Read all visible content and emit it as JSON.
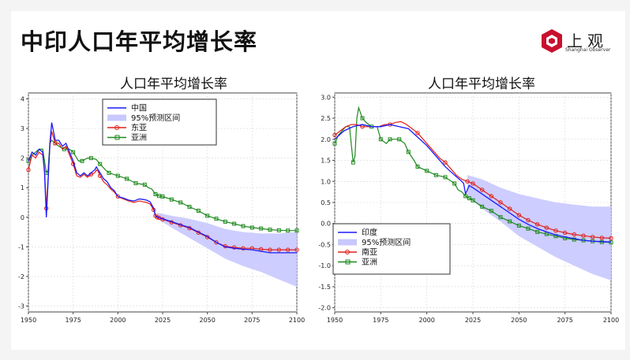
{
  "slide": {
    "title": "中印人口年平均增长率",
    "logo_text": "上观",
    "logo_subtext": "Shanghai Observer",
    "logo_color": "#c8102e"
  },
  "chart_data": [
    {
      "type": "line",
      "title": "人口年平均增长率",
      "xlim": [
        1950,
        2100
      ],
      "ylim": [
        -3.2,
        4.2
      ],
      "xticks": [
        1950,
        1975,
        2000,
        2025,
        2050,
        2075,
        2100
      ],
      "yticks": [
        -3,
        -2,
        -1,
        0,
        1,
        2,
        3,
        4
      ],
      "grid": true,
      "legend_position": "top-center",
      "legend": [
        "中国",
        "95%预测区间",
        "东亚",
        "亚洲"
      ],
      "series": [
        {
          "name": "中国",
          "color": "#1a1aff",
          "marker": "none",
          "x": [
            1950,
            1952,
            1954,
            1956,
            1958,
            1959,
            1960,
            1961,
            1962,
            1963,
            1965,
            1967,
            1969,
            1971,
            1973,
            1975,
            1977,
            1979,
            1981,
            1983,
            1985,
            1987,
            1988,
            1989,
            1990,
            1992,
            1994,
            1996,
            1998,
            2000,
            2003,
            2006,
            2009,
            2012,
            2014,
            2016,
            2018,
            2020,
            2021,
            2022,
            2023,
            2025,
            2030,
            2035,
            2040,
            2045,
            2050,
            2055,
            2060,
            2065,
            2070,
            2075,
            2080,
            2085,
            2090,
            2095,
            2100
          ],
          "y": [
            1.9,
            2.2,
            2.1,
            2.3,
            2.2,
            1.5,
            0.0,
            1.2,
            2.5,
            3.2,
            2.6,
            2.6,
            2.4,
            2.5,
            2.2,
            1.9,
            1.5,
            1.4,
            1.5,
            1.4,
            1.5,
            1.6,
            1.7,
            1.6,
            1.5,
            1.3,
            1.2,
            1.0,
            0.9,
            0.7,
            0.65,
            0.58,
            0.55,
            0.62,
            0.6,
            0.58,
            0.52,
            0.3,
            0.05,
            0.0,
            -0.01,
            -0.05,
            -0.15,
            -0.25,
            -0.35,
            -0.5,
            -0.65,
            -0.85,
            -1.0,
            -1.05,
            -1.08,
            -1.1,
            -1.15,
            -1.2,
            -1.2,
            -1.2,
            -1.2
          ]
        },
        {
          "name": "东亚",
          "color": "#e0201a",
          "marker": "circle",
          "x": [
            1950,
            1952,
            1954,
            1956,
            1958,
            1959,
            1960,
            1961,
            1962,
            1963,
            1965,
            1967,
            1969,
            1971,
            1973,
            1975,
            1977,
            1979,
            1981,
            1983,
            1985,
            1987,
            1988,
            1989,
            1990,
            1992,
            1994,
            1996,
            1998,
            2000,
            2003,
            2006,
            2009,
            2012,
            2014,
            2016,
            2018,
            2020,
            2021,
            2022,
            2023,
            2025,
            2030,
            2035,
            2040,
            2045,
            2050,
            2055,
            2060,
            2065,
            2070,
            2075,
            2080,
            2085,
            2090,
            2095,
            2100
          ],
          "y": [
            1.6,
            2.1,
            2.0,
            2.2,
            2.1,
            1.6,
            0.3,
            1.3,
            2.4,
            2.9,
            2.5,
            2.5,
            2.3,
            2.4,
            2.1,
            1.8,
            1.4,
            1.35,
            1.45,
            1.35,
            1.45,
            1.5,
            1.6,
            1.55,
            1.4,
            1.2,
            1.1,
            0.95,
            0.85,
            0.7,
            0.62,
            0.55,
            0.5,
            0.55,
            0.52,
            0.5,
            0.45,
            0.25,
            0.05,
            0.0,
            -0.02,
            -0.07,
            -0.17,
            -0.27,
            -0.37,
            -0.52,
            -0.67,
            -0.85,
            -0.98,
            -1.02,
            -1.05,
            -1.05,
            -1.08,
            -1.1,
            -1.1,
            -1.1,
            -1.1
          ]
        },
        {
          "name": "亚洲",
          "color": "#1e8a1e",
          "marker": "square",
          "x": [
            1950,
            1952,
            1954,
            1956,
            1958,
            1960,
            1961,
            1962,
            1963,
            1965,
            1967,
            1970,
            1973,
            1975,
            1978,
            1980,
            1983,
            1985,
            1988,
            1990,
            1993,
            1995,
            2000,
            2005,
            2010,
            2015,
            2017,
            2019,
            2021,
            2023,
            2025,
            2030,
            2035,
            2040,
            2045,
            2050,
            2055,
            2060,
            2065,
            2070,
            2075,
            2080,
            2085,
            2090,
            2095,
            2100
          ],
          "y": [
            1.9,
            2.1,
            2.2,
            2.3,
            2.3,
            1.5,
            1.6,
            2.5,
            2.6,
            2.5,
            2.4,
            2.3,
            2.3,
            2.2,
            1.9,
            1.9,
            2.0,
            2.0,
            1.95,
            1.8,
            1.6,
            1.5,
            1.4,
            1.3,
            1.15,
            1.1,
            1.0,
            0.95,
            0.78,
            0.72,
            0.7,
            0.6,
            0.5,
            0.35,
            0.22,
            0.05,
            -0.05,
            -0.15,
            -0.22,
            -0.3,
            -0.35,
            -0.38,
            -0.42,
            -0.44,
            -0.45,
            -0.45
          ]
        }
      ],
      "band": {
        "name": "95%预测区间",
        "color": "#c8c8ff",
        "x": [
          2022,
          2030,
          2040,
          2050,
          2060,
          2070,
          2080,
          2090,
          2100
        ],
        "lower": [
          -0.05,
          -0.35,
          -0.7,
          -1.05,
          -1.4,
          -1.65,
          -1.85,
          -2.1,
          -2.35
        ],
        "upper": [
          0.15,
          0.05,
          -0.05,
          -0.2,
          -0.4,
          -0.5,
          -0.55,
          -0.55,
          -0.5
        ]
      }
    },
    {
      "type": "line",
      "title": "人口年平均增长率",
      "xlim": [
        1950,
        2100
      ],
      "ylim": [
        -2.1,
        3.1
      ],
      "xticks": [
        1950,
        1975,
        2000,
        2025,
        2050,
        2075,
        2100
      ],
      "yticks": [
        -2.0,
        -1.5,
        -1.0,
        -0.5,
        0.0,
        0.5,
        1.0,
        1.5,
        2.0,
        2.5,
        3.0
      ],
      "grid": true,
      "legend_position": "bottom-left",
      "legend": [
        "印度",
        "95%预测区间",
        "南亚",
        "亚洲"
      ],
      "series": [
        {
          "name": "印度",
          "color": "#1a1aff",
          "marker": "none",
          "x": [
            1950,
            1955,
            1960,
            1965,
            1970,
            1975,
            1980,
            1985,
            1990,
            1995,
            2000,
            2005,
            2010,
            2015,
            2019,
            2020,
            2021,
            2022,
            2023,
            2025,
            2030,
            2035,
            2040,
            2045,
            2050,
            2055,
            2060,
            2065,
            2070,
            2075,
            2080,
            2085,
            2090,
            2095,
            2100
          ],
          "y": [
            2.0,
            2.2,
            2.3,
            2.35,
            2.3,
            2.3,
            2.35,
            2.3,
            2.25,
            2.05,
            1.85,
            1.6,
            1.35,
            1.15,
            1.0,
            0.95,
            0.7,
            0.8,
            0.9,
            0.85,
            0.7,
            0.55,
            0.4,
            0.25,
            0.1,
            -0.02,
            -0.12,
            -0.2,
            -0.27,
            -0.32,
            -0.36,
            -0.4,
            -0.42,
            -0.43,
            -0.44
          ]
        },
        {
          "name": "南亚",
          "color": "#e0201a",
          "marker": "circle",
          "x": [
            1950,
            1953,
            1956,
            1959,
            1962,
            1965,
            1968,
            1971,
            1974,
            1977,
            1980,
            1983,
            1986,
            1989,
            1992,
            1995,
            1998,
            2001,
            2004,
            2007,
            2010,
            2013,
            2016,
            2019,
            2022,
            2025,
            2030,
            2035,
            2040,
            2045,
            2050,
            2055,
            2060,
            2065,
            2070,
            2075,
            2080,
            2085,
            2090,
            2095,
            2100
          ],
          "y": [
            2.1,
            2.2,
            2.3,
            2.35,
            2.35,
            2.3,
            2.3,
            2.3,
            2.3,
            2.35,
            2.35,
            2.4,
            2.42,
            2.35,
            2.25,
            2.15,
            2.0,
            1.85,
            1.7,
            1.55,
            1.45,
            1.3,
            1.15,
            1.05,
            1.0,
            0.95,
            0.8,
            0.65,
            0.5,
            0.35,
            0.2,
            0.08,
            -0.02,
            -0.1,
            -0.17,
            -0.22,
            -0.26,
            -0.29,
            -0.32,
            -0.34,
            -0.35
          ]
        },
        {
          "name": "亚洲",
          "color": "#1e8a1e",
          "marker": "square",
          "x": [
            1950,
            1952,
            1954,
            1956,
            1958,
            1960,
            1961,
            1962,
            1963,
            1965,
            1967,
            1970,
            1973,
            1975,
            1978,
            1980,
            1983,
            1985,
            1988,
            1990,
            1993,
            1995,
            2000,
            2005,
            2010,
            2015,
            2017,
            2019,
            2021,
            2023,
            2025,
            2030,
            2035,
            2040,
            2045,
            2050,
            2055,
            2060,
            2065,
            2070,
            2075,
            2080,
            2085,
            2090,
            2095,
            2100
          ],
          "y": [
            1.9,
            2.1,
            2.2,
            2.3,
            2.3,
            1.45,
            1.6,
            2.5,
            2.75,
            2.5,
            2.4,
            2.3,
            2.3,
            2.0,
            1.9,
            2.0,
            2.0,
            2.0,
            1.9,
            1.7,
            1.5,
            1.35,
            1.25,
            1.15,
            1.1,
            0.95,
            0.8,
            0.75,
            0.65,
            0.6,
            0.55,
            0.4,
            0.3,
            0.15,
            0.05,
            -0.05,
            -0.12,
            -0.2,
            -0.25,
            -0.3,
            -0.35,
            -0.38,
            -0.4,
            -0.42,
            -0.44,
            -0.45
          ]
        }
      ],
      "band": {
        "name": "95%预测区间",
        "color": "#c8c8ff",
        "x": [
          2022,
          2030,
          2040,
          2050,
          2060,
          2070,
          2080,
          2090,
          2100
        ],
        "lower": [
          0.65,
          0.35,
          0.05,
          -0.3,
          -0.55,
          -0.8,
          -1.0,
          -1.2,
          -1.35
        ],
        "upper": [
          1.15,
          1.05,
          0.85,
          0.7,
          0.6,
          0.5,
          0.45,
          0.4,
          0.4
        ]
      }
    }
  ]
}
